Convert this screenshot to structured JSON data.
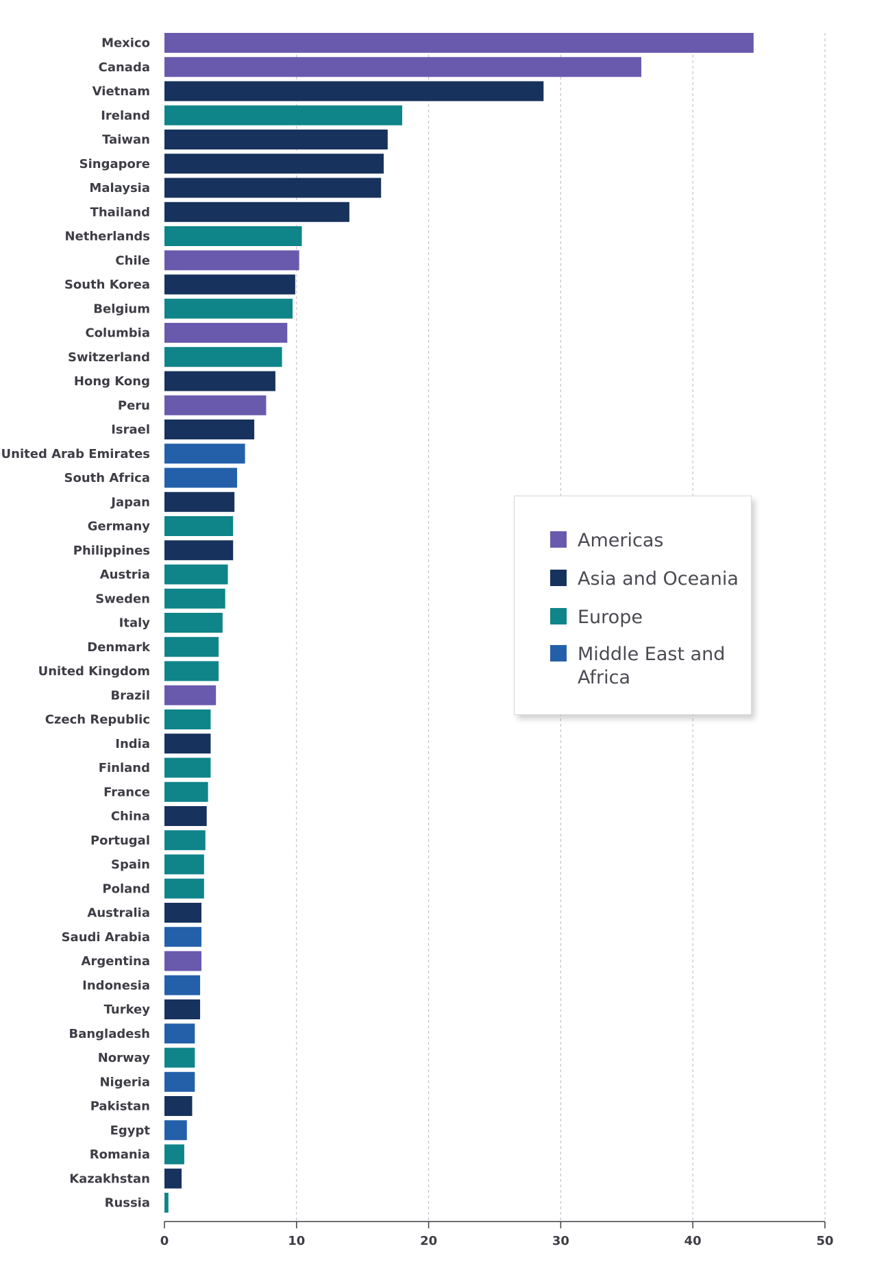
{
  "chart_data": {
    "type": "bar",
    "orientation": "horizontal",
    "title": "",
    "xlabel": "",
    "ylabel": "",
    "xlim": [
      0,
      50
    ],
    "x_ticks": [
      "0",
      "10",
      "20",
      "30",
      "40",
      "50"
    ],
    "grid": "vertical dashed",
    "legend_placement": "right-middle",
    "regions": [
      {
        "name": "Americas",
        "color": "#6a5aad"
      },
      {
        "name": "Asia and Oceania",
        "color": "#17325c"
      },
      {
        "name": "Europe",
        "color": "#0f8489"
      },
      {
        "name": "Middle East and Africa",
        "color": "#2460aa"
      }
    ],
    "categories": [
      "Mexico",
      "Canada",
      "Vietnam",
      "Ireland",
      "Taiwan",
      "Singapore",
      "Malaysia",
      "Thailand",
      "Netherlands",
      "Chile",
      "South Korea",
      "Belgium",
      "Columbia",
      "Switzerland",
      "Hong Kong",
      "Peru",
      "Israel",
      "United Arab Emirates",
      "South Africa",
      "Japan",
      "Germany",
      "Philippines",
      "Austria",
      "Sweden",
      "Italy",
      "Denmark",
      "United Kingdom",
      "Brazil",
      "Czech Republic",
      "India",
      "Finland",
      "France",
      "China",
      "Portugal",
      "Spain",
      "Poland",
      "Australia",
      "Saudi Arabia",
      "Argentina",
      "Indonesia",
      "Turkey",
      "Bangladesh",
      "Norway",
      "Nigeria",
      "Pakistan",
      "Egypt",
      "Romania",
      "Kazakhstan",
      "Russia"
    ],
    "values": [
      44.6,
      36.1,
      28.7,
      18.0,
      16.9,
      16.6,
      16.4,
      14.0,
      10.4,
      10.2,
      9.9,
      9.7,
      9.3,
      8.9,
      8.4,
      7.7,
      6.8,
      6.1,
      5.5,
      5.3,
      5.2,
      5.2,
      4.8,
      4.6,
      4.4,
      4.1,
      4.1,
      3.9,
      3.5,
      3.5,
      3.5,
      3.3,
      3.2,
      3.1,
      3.0,
      3.0,
      2.8,
      2.8,
      2.8,
      2.7,
      2.7,
      2.3,
      2.3,
      2.3,
      2.1,
      1.7,
      1.5,
      1.3,
      0.3
    ],
    "region_index": [
      0,
      0,
      1,
      2,
      1,
      1,
      1,
      1,
      2,
      0,
      1,
      2,
      0,
      2,
      1,
      0,
      1,
      3,
      3,
      1,
      2,
      1,
      2,
      2,
      2,
      2,
      2,
      0,
      2,
      1,
      2,
      2,
      1,
      2,
      2,
      2,
      1,
      3,
      0,
      3,
      1,
      3,
      2,
      3,
      1,
      3,
      2,
      1,
      2
    ]
  }
}
